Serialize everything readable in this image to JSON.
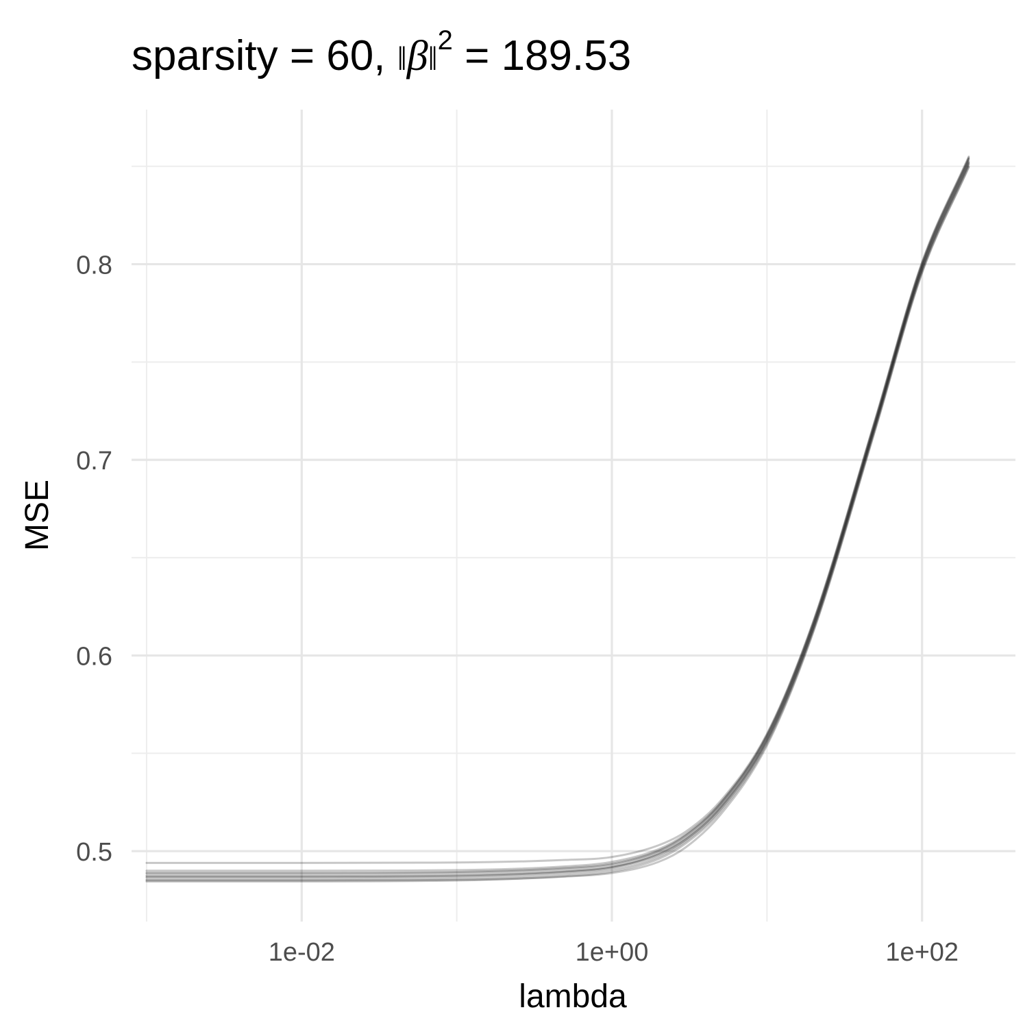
{
  "chart_data": {
    "type": "line",
    "title": {
      "prefix": "sparsity = 60, ",
      "norm_left": "‖",
      "symbol": "β",
      "norm_right": "‖",
      "superscript": "2",
      "suffix": " = 189.53"
    },
    "xlabel": "lambda",
    "ylabel": "MSE",
    "x_scale": "log10",
    "xlim": [
      0.0008,
      400
    ],
    "ylim": [
      0.464,
      0.879
    ],
    "x_ticks": [
      {
        "value": 0.01,
        "label": "1e-02"
      },
      {
        "value": 1,
        "label": "1e+00"
      },
      {
        "value": 100,
        "label": "1e+02"
      }
    ],
    "x_minor_ticks": [
      0.001,
      0.1,
      10
    ],
    "y_ticks": [
      {
        "value": 0.5,
        "label": "0.5"
      },
      {
        "value": 0.6,
        "label": "0.6"
      },
      {
        "value": 0.7,
        "label": "0.7"
      },
      {
        "value": 0.8,
        "label": "0.8"
      }
    ],
    "y_minor_ticks": [
      0.55,
      0.65,
      0.75,
      0.85
    ],
    "grid": true,
    "legend": "none",
    "line_color": "#000000",
    "x": [
      0.001,
      0.01,
      0.1,
      0.5,
      1,
      2,
      3,
      5,
      10,
      20,
      50,
      100,
      200
    ],
    "series": [
      {
        "values": [
          0.4845,
          0.4845,
          0.485,
          0.4872,
          0.4895,
          0.496,
          0.504,
          0.52,
          0.555,
          0.613,
          0.716,
          0.796,
          0.85
        ]
      },
      {
        "values": [
          0.4855,
          0.4855,
          0.486,
          0.4882,
          0.4905,
          0.497,
          0.505,
          0.521,
          0.556,
          0.614,
          0.717,
          0.797,
          0.851
        ]
      },
      {
        "values": [
          0.4865,
          0.4865,
          0.487,
          0.4892,
          0.4915,
          0.4985,
          0.5062,
          0.5222,
          0.557,
          0.615,
          0.718,
          0.798,
          0.852
        ]
      },
      {
        "values": [
          0.4875,
          0.4875,
          0.488,
          0.49,
          0.4922,
          0.499,
          0.5068,
          0.5228,
          0.5576,
          0.6156,
          0.7186,
          0.7986,
          0.8526
        ]
      },
      {
        "values": [
          0.4885,
          0.4885,
          0.489,
          0.491,
          0.4932,
          0.5,
          0.5078,
          0.5238,
          0.5586,
          0.6166,
          0.7196,
          0.7996,
          0.8536
        ]
      },
      {
        "values": [
          0.49,
          0.49,
          0.4903,
          0.4922,
          0.4945,
          0.501,
          0.5088,
          0.5245,
          0.5595,
          0.6175,
          0.7205,
          0.8005,
          0.8545
        ]
      },
      {
        "values": [
          0.494,
          0.494,
          0.4942,
          0.4955,
          0.497,
          0.503,
          0.51,
          0.5255,
          0.56,
          0.618,
          0.721,
          0.801,
          0.855
        ]
      },
      {
        "values": [
          0.485,
          0.485,
          0.4853,
          0.487,
          0.4888,
          0.4945,
          0.502,
          0.5185,
          0.554,
          0.6125,
          0.7155,
          0.7955,
          0.8495
        ]
      },
      {
        "values": [
          0.487,
          0.487,
          0.4874,
          0.4895,
          0.4918,
          0.498,
          0.5058,
          0.5218,
          0.5566,
          0.6146,
          0.7176,
          0.7976,
          0.8516
        ]
      },
      {
        "values": [
          0.489,
          0.489,
          0.4894,
          0.4914,
          0.4936,
          0.5002,
          0.5082,
          0.5242,
          0.559,
          0.617,
          0.72,
          0.8,
          0.854
        ]
      }
    ]
  }
}
